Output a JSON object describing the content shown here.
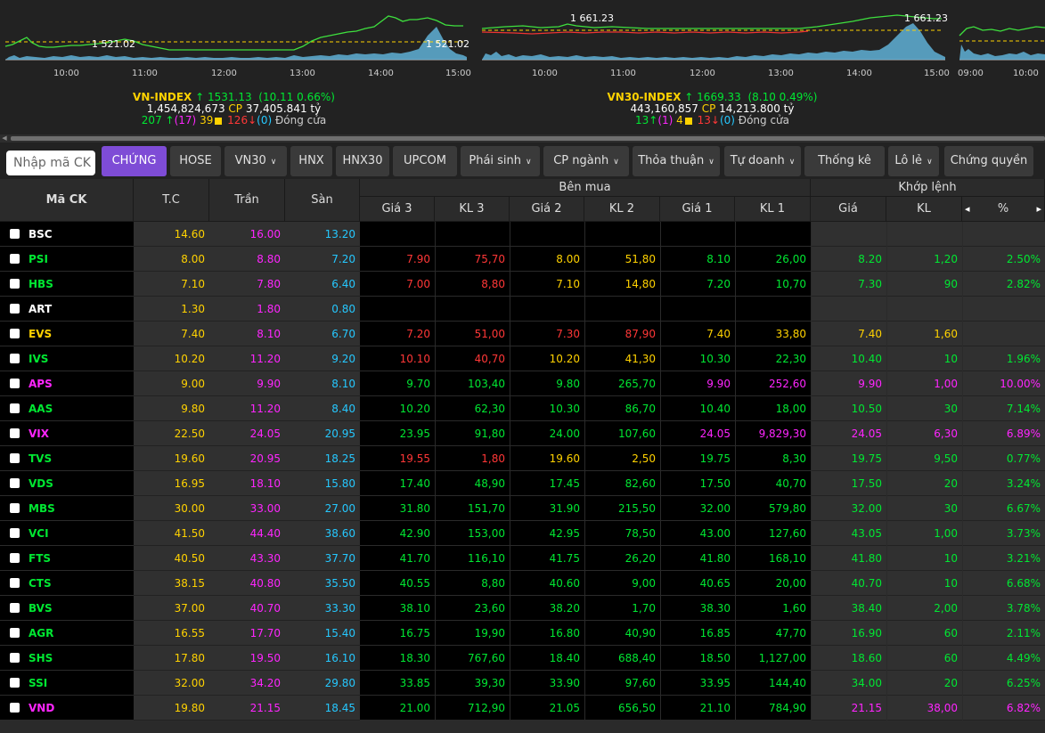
{
  "indices": [
    {
      "name": "VN-INDEX",
      "value": "1531.13",
      "change": "(10.11",
      "pct": "0.66%)",
      "volume": "1,454,824,673",
      "cp_label": "CP",
      "cp_value": "37,405.841 tỷ",
      "up": "207",
      "up_ceiling": "(17)",
      "ref": "39",
      "down": "126",
      "down_floor": "(0)",
      "status": "Đóng cửa",
      "ref_label": "1 521.02",
      "peak_label": "1 521.02",
      "times": [
        "10:00",
        "11:00",
        "12:00",
        "13:00",
        "14:00",
        "15:00"
      ]
    },
    {
      "name": "VN30-INDEX",
      "value": "1669.33",
      "change": "(8.10",
      "pct": "0.49%)",
      "volume": "443,160,857",
      "cp_label": "CP",
      "cp_value": "14,213.800 tỷ",
      "up": "13",
      "up_ceiling": "(1)",
      "ref": "4",
      "down": "13",
      "down_floor": "(0)",
      "status": "Đóng cửa",
      "ref_label": "1 661.23",
      "peak_label": "1 661.23",
      "times": [
        "10:00",
        "11:00",
        "12:00",
        "13:00",
        "14:00",
        "15:00"
      ]
    },
    {
      "times": [
        "09:00",
        "10:00"
      ]
    }
  ],
  "colors": {
    "up": "#00e832",
    "ref": "#ffd200",
    "down": "#ff3737",
    "ceiling": "#ff25ff",
    "floor": "#25c8ff",
    "accent": "#7e4cd6"
  },
  "search": {
    "placeholder": "Nhập mã CK"
  },
  "tabs": [
    {
      "label": "CHỨNG",
      "active": true,
      "dropdown": false
    },
    {
      "label": "HOSE",
      "dropdown": false
    },
    {
      "label": "VN30",
      "dropdown": true
    },
    {
      "label": "HNX",
      "dropdown": false
    },
    {
      "label": "HNX30",
      "dropdown": false
    },
    {
      "label": "UPCOM",
      "dropdown": false
    },
    {
      "label": "Phái sinh",
      "dropdown": true
    },
    {
      "label": "CP ngành",
      "dropdown": true
    },
    {
      "label": "Thỏa thuận",
      "dropdown": true
    },
    {
      "label": "Tự doanh",
      "dropdown": true
    },
    {
      "label": "Thống kê",
      "dropdown": false
    },
    {
      "label": "Lô lẻ",
      "dropdown": true
    },
    {
      "label": "Chứng quyền",
      "dropdown": false
    }
  ],
  "table": {
    "headers": {
      "symbol": "Mã CK",
      "ref": "T.C",
      "ceiling": "Trần",
      "floor": "Sàn",
      "bid_group": "Bên mua",
      "match_group": "Khớp lệnh",
      "bid_cols": [
        "Giá 3",
        "KL 3",
        "Giá 2",
        "KL 2",
        "Giá 1",
        "KL 1"
      ],
      "match_cols": [
        "Giá",
        "KL",
        "%"
      ]
    },
    "rows": [
      {
        "sym": "BSC",
        "c": "w",
        "tc": "14.60",
        "tran": "16.00",
        "san": "13.20",
        "b": [
          [
            "",
            ""
          ],
          [
            "",
            ""
          ],
          [
            "",
            ""
          ]
        ],
        "bc": [
          "",
          "",
          ""
        ],
        "mp": "",
        "mv": "",
        "pct": "",
        "mc": ""
      },
      {
        "sym": "PSI",
        "c": "u",
        "tc": "8.00",
        "tran": "8.80",
        "san": "7.20",
        "b": [
          [
            "7.90",
            "75,70"
          ],
          [
            "8.00",
            "51,80"
          ],
          [
            "8.10",
            "26,00"
          ]
        ],
        "bc": [
          "d",
          "r",
          "u"
        ],
        "mp": "8.20",
        "mv": "1,20",
        "pct": "2.50%",
        "mc": "u"
      },
      {
        "sym": "HBS",
        "c": "u",
        "tc": "7.10",
        "tran": "7.80",
        "san": "6.40",
        "b": [
          [
            "7.00",
            "8,80"
          ],
          [
            "7.10",
            "14,80"
          ],
          [
            "7.20",
            "10,70"
          ]
        ],
        "bc": [
          "d",
          "r",
          "u"
        ],
        "mp": "7.30",
        "mv": "90",
        "pct": "2.82%",
        "mc": "u"
      },
      {
        "sym": "ART",
        "c": "w",
        "tc": "1.30",
        "tran": "1.80",
        "san": "0.80",
        "b": [
          [
            "",
            ""
          ],
          [
            "",
            ""
          ],
          [
            "",
            ""
          ]
        ],
        "bc": [
          "",
          "",
          ""
        ],
        "mp": "",
        "mv": "",
        "pct": "",
        "mc": ""
      },
      {
        "sym": "EVS",
        "c": "r",
        "tc": "7.40",
        "tran": "8.10",
        "san": "6.70",
        "b": [
          [
            "7.20",
            "51,00"
          ],
          [
            "7.30",
            "87,90"
          ],
          [
            "7.40",
            "33,80"
          ]
        ],
        "bc": [
          "d",
          "d",
          "r"
        ],
        "mp": "7.40",
        "mv": "1,60",
        "pct": "",
        "mc": "r"
      },
      {
        "sym": "IVS",
        "c": "u",
        "tc": "10.20",
        "tran": "11.20",
        "san": "9.20",
        "b": [
          [
            "10.10",
            "40,70"
          ],
          [
            "10.20",
            "41,30"
          ],
          [
            "10.30",
            "22,30"
          ]
        ],
        "bc": [
          "d",
          "r",
          "u"
        ],
        "mp": "10.40",
        "mv": "10",
        "pct": "1.96%",
        "mc": "u"
      },
      {
        "sym": "APS",
        "c": "c",
        "tc": "9.00",
        "tran": "9.90",
        "san": "8.10",
        "b": [
          [
            "9.70",
            "103,40"
          ],
          [
            "9.80",
            "265,70"
          ],
          [
            "9.90",
            "252,60"
          ]
        ],
        "bc": [
          "u",
          "u",
          "c"
        ],
        "mp": "9.90",
        "mv": "1,00",
        "pct": "10.00%",
        "mc": "c"
      },
      {
        "sym": "AAS",
        "c": "u",
        "tc": "9.80",
        "tran": "11.20",
        "san": "8.40",
        "b": [
          [
            "10.20",
            "62,30"
          ],
          [
            "10.30",
            "86,70"
          ],
          [
            "10.40",
            "18,00"
          ]
        ],
        "bc": [
          "u",
          "u",
          "u"
        ],
        "mp": "10.50",
        "mv": "30",
        "pct": "7.14%",
        "mc": "u"
      },
      {
        "sym": "VIX",
        "c": "c",
        "tc": "22.50",
        "tran": "24.05",
        "san": "20.95",
        "b": [
          [
            "23.95",
            "91,80"
          ],
          [
            "24.00",
            "107,60"
          ],
          [
            "24.05",
            "9,829,30"
          ]
        ],
        "bc": [
          "u",
          "u",
          "c"
        ],
        "mp": "24.05",
        "mv": "6,30",
        "pct": "6.89%",
        "mc": "c"
      },
      {
        "sym": "TVS",
        "c": "u",
        "tc": "19.60",
        "tran": "20.95",
        "san": "18.25",
        "b": [
          [
            "19.55",
            "1,80"
          ],
          [
            "19.60",
            "2,50"
          ],
          [
            "19.75",
            "8,30"
          ]
        ],
        "bc": [
          "d",
          "r",
          "u"
        ],
        "mp": "19.75",
        "mv": "9,50",
        "pct": "0.77%",
        "mc": "u"
      },
      {
        "sym": "VDS",
        "c": "u",
        "tc": "16.95",
        "tran": "18.10",
        "san": "15.80",
        "b": [
          [
            "17.40",
            "48,90"
          ],
          [
            "17.45",
            "82,60"
          ],
          [
            "17.50",
            "40,70"
          ]
        ],
        "bc": [
          "u",
          "u",
          "u"
        ],
        "mp": "17.50",
        "mv": "20",
        "pct": "3.24%",
        "mc": "u"
      },
      {
        "sym": "MBS",
        "c": "u",
        "tc": "30.00",
        "tran": "33.00",
        "san": "27.00",
        "b": [
          [
            "31.80",
            "151,70"
          ],
          [
            "31.90",
            "215,50"
          ],
          [
            "32.00",
            "579,80"
          ]
        ],
        "bc": [
          "u",
          "u",
          "u"
        ],
        "mp": "32.00",
        "mv": "30",
        "pct": "6.67%",
        "mc": "u"
      },
      {
        "sym": "VCI",
        "c": "u",
        "tc": "41.50",
        "tran": "44.40",
        "san": "38.60",
        "b": [
          [
            "42.90",
            "153,00"
          ],
          [
            "42.95",
            "78,50"
          ],
          [
            "43.00",
            "127,60"
          ]
        ],
        "bc": [
          "u",
          "u",
          "u"
        ],
        "mp": "43.05",
        "mv": "1,00",
        "pct": "3.73%",
        "mc": "u"
      },
      {
        "sym": "FTS",
        "c": "u",
        "tc": "40.50",
        "tran": "43.30",
        "san": "37.70",
        "b": [
          [
            "41.70",
            "116,10"
          ],
          [
            "41.75",
            "26,20"
          ],
          [
            "41.80",
            "168,10"
          ]
        ],
        "bc": [
          "u",
          "u",
          "u"
        ],
        "mp": "41.80",
        "mv": "10",
        "pct": "3.21%",
        "mc": "u"
      },
      {
        "sym": "CTS",
        "c": "u",
        "tc": "38.15",
        "tran": "40.80",
        "san": "35.50",
        "b": [
          [
            "40.55",
            "8,80"
          ],
          [
            "40.60",
            "9,00"
          ],
          [
            "40.65",
            "20,00"
          ]
        ],
        "bc": [
          "u",
          "u",
          "u"
        ],
        "mp": "40.70",
        "mv": "10",
        "pct": "6.68%",
        "mc": "u"
      },
      {
        "sym": "BVS",
        "c": "u",
        "tc": "37.00",
        "tran": "40.70",
        "san": "33.30",
        "b": [
          [
            "38.10",
            "23,60"
          ],
          [
            "38.20",
            "1,70"
          ],
          [
            "38.30",
            "1,60"
          ]
        ],
        "bc": [
          "u",
          "u",
          "u"
        ],
        "mp": "38.40",
        "mv": "2,00",
        "pct": "3.78%",
        "mc": "u"
      },
      {
        "sym": "AGR",
        "c": "u",
        "tc": "16.55",
        "tran": "17.70",
        "san": "15.40",
        "b": [
          [
            "16.75",
            "19,90"
          ],
          [
            "16.80",
            "40,90"
          ],
          [
            "16.85",
            "47,70"
          ]
        ],
        "bc": [
          "u",
          "u",
          "u"
        ],
        "mp": "16.90",
        "mv": "60",
        "pct": "2.11%",
        "mc": "u"
      },
      {
        "sym": "SHS",
        "c": "u",
        "tc": "17.80",
        "tran": "19.50",
        "san": "16.10",
        "b": [
          [
            "18.30",
            "767,60"
          ],
          [
            "18.40",
            "688,40"
          ],
          [
            "18.50",
            "1,127,00"
          ]
        ],
        "bc": [
          "u",
          "u",
          "u"
        ],
        "mp": "18.60",
        "mv": "60",
        "pct": "4.49%",
        "mc": "u"
      },
      {
        "sym": "SSI",
        "c": "u",
        "tc": "32.00",
        "tran": "34.20",
        "san": "29.80",
        "b": [
          [
            "33.85",
            "39,30"
          ],
          [
            "33.90",
            "97,60"
          ],
          [
            "33.95",
            "144,40"
          ]
        ],
        "bc": [
          "u",
          "u",
          "u"
        ],
        "mp": "34.00",
        "mv": "20",
        "pct": "6.25%",
        "mc": "u"
      },
      {
        "sym": "VND",
        "c": "c",
        "tc": "19.80",
        "tran": "21.15",
        "san": "18.45",
        "b": [
          [
            "21.00",
            "712,90"
          ],
          [
            "21.05",
            "656,50"
          ],
          [
            "21.10",
            "784,90"
          ]
        ],
        "bc": [
          "u",
          "u",
          "u"
        ],
        "mp": "21.15",
        "mv": "38,00",
        "pct": "6.82%",
        "mc": "c"
      }
    ]
  }
}
